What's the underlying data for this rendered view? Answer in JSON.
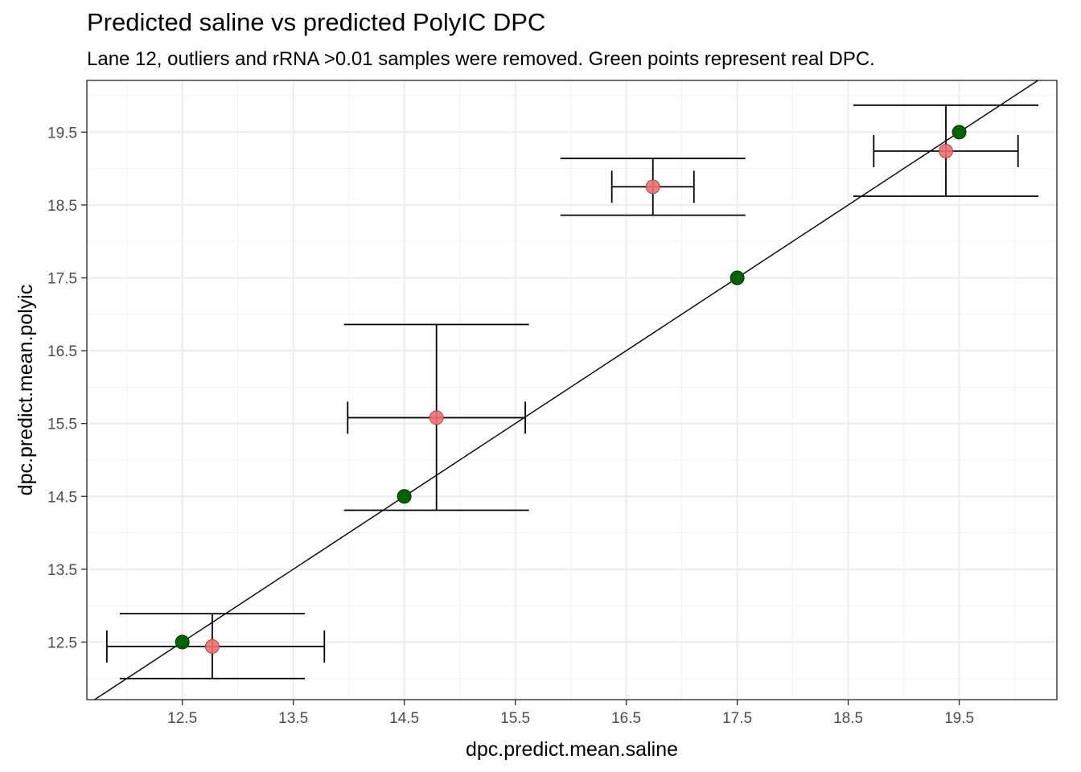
{
  "chart_data": {
    "type": "scatter",
    "title": "Predicted saline vs predicted PolyIC DPC",
    "subtitle": "Lane 12, outliers and rRNA >0.01 samples were removed. Green points represent real DPC.",
    "xlabel": "dpc.predict.mean.saline",
    "ylabel": "dpc.predict.mean.polyic",
    "xlim": [
      11.64,
      20.38
    ],
    "ylim": [
      11.71,
      20.21
    ],
    "x_ticks": [
      "12.5",
      "13.5",
      "14.5",
      "15.5",
      "16.5",
      "17.5",
      "18.5",
      "19.5"
    ],
    "y_ticks": [
      "12.5",
      "13.5",
      "14.5",
      "15.5",
      "16.5",
      "17.5",
      "18.5",
      "19.5"
    ],
    "grid": true,
    "reference_line": {
      "slope": 1,
      "intercept": 0
    },
    "predicted_points": {
      "color": "#f07070",
      "points": [
        {
          "x": 12.77,
          "y": 12.44,
          "xerr": [
            11.82,
            13.78
          ],
          "yerr": [
            12.0,
            12.89
          ]
        },
        {
          "x": 14.79,
          "y": 15.58,
          "xerr": [
            13.99,
            15.59
          ],
          "yerr": [
            14.31,
            16.86
          ]
        },
        {
          "x": 16.74,
          "y": 18.75,
          "xerr": [
            16.37,
            17.11
          ],
          "yerr": [
            18.36,
            19.14
          ]
        },
        {
          "x": 19.38,
          "y": 19.24,
          "xerr": [
            18.73,
            20.03
          ],
          "yerr": [
            18.62,
            19.87
          ]
        }
      ]
    },
    "real_points": {
      "color": "#006400",
      "points": [
        {
          "x": 12.5,
          "y": 12.5
        },
        {
          "x": 14.5,
          "y": 14.5
        },
        {
          "x": 17.5,
          "y": 17.5
        },
        {
          "x": 19.5,
          "y": 19.5
        }
      ]
    }
  }
}
